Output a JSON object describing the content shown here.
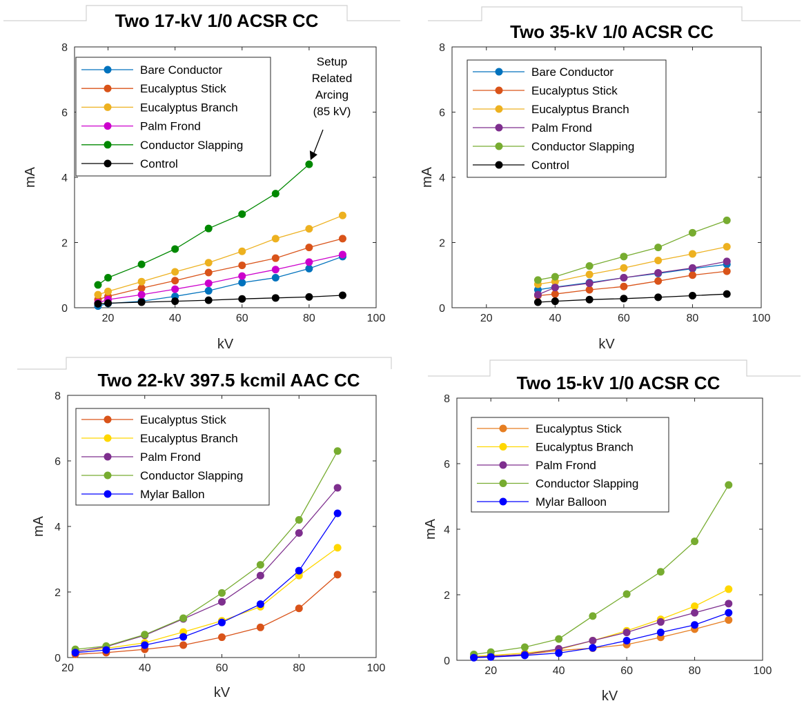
{
  "chart_data": [
    {
      "type": "line",
      "title": "Two 17-kV 1/0 ACSR CC",
      "xlabel": "kV",
      "ylabel": "mA",
      "xlim": [
        10,
        100
      ],
      "ylim": [
        0,
        8
      ],
      "xticks": [
        20,
        40,
        60,
        80,
        100
      ],
      "yticks": [
        0,
        2,
        4,
        6,
        8
      ],
      "legend_position": "top-left",
      "annotation": {
        "lines": [
          "Setup",
          "Related",
          "Arcing",
          "(85 kV)"
        ],
        "target": [
          80,
          4.4
        ]
      },
      "series": [
        {
          "name": "Bare Conductor",
          "color": "#0072BD",
          "x": [
            17,
            20,
            30,
            40,
            50,
            60,
            70,
            80,
            90
          ],
          "values": [
            0.05,
            0.13,
            0.2,
            0.35,
            0.52,
            0.77,
            0.92,
            1.2,
            1.57
          ]
        },
        {
          "name": "Eucalyptus Stick",
          "color": "#D95319",
          "x": [
            17,
            20,
            30,
            40,
            50,
            60,
            70,
            80,
            90
          ],
          "values": [
            0.25,
            0.35,
            0.6,
            0.83,
            1.08,
            1.3,
            1.52,
            1.85,
            2.12
          ]
        },
        {
          "name": "Eucalyptus Branch",
          "color": "#EDB120",
          "x": [
            17,
            20,
            30,
            40,
            50,
            60,
            70,
            80,
            90
          ],
          "values": [
            0.4,
            0.5,
            0.8,
            1.1,
            1.38,
            1.73,
            2.12,
            2.42,
            2.83
          ]
        },
        {
          "name": "Palm Frond",
          "color": "#CC00CC",
          "x": [
            17,
            20,
            30,
            40,
            50,
            60,
            70,
            80,
            90
          ],
          "values": [
            0.15,
            0.25,
            0.4,
            0.57,
            0.75,
            0.97,
            1.17,
            1.4,
            1.63
          ]
        },
        {
          "name": "Conductor Slapping",
          "color": "#008800",
          "x": [
            17,
            20,
            30,
            40,
            50,
            60,
            70,
            80
          ],
          "values": [
            0.7,
            0.92,
            1.33,
            1.8,
            2.43,
            2.87,
            3.5,
            4.4
          ]
        },
        {
          "name": "Control",
          "color": "#000000",
          "x": [
            17,
            20,
            30,
            40,
            50,
            60,
            70,
            80,
            90
          ],
          "values": [
            0.12,
            0.14,
            0.17,
            0.2,
            0.23,
            0.27,
            0.3,
            0.33,
            0.38
          ]
        }
      ]
    },
    {
      "type": "line",
      "title": "Two 35-kV 1/0 ACSR CC",
      "xlabel": "kV",
      "ylabel": "mA",
      "xlim": [
        10,
        100
      ],
      "ylim": [
        0,
        8
      ],
      "xticks": [
        20,
        40,
        60,
        80,
        100
      ],
      "yticks": [
        0,
        2,
        4,
        6,
        8
      ],
      "legend_position": "top-left",
      "series": [
        {
          "name": "Bare Conductor",
          "color": "#0072BD",
          "x": [
            35,
            40,
            50,
            60,
            70,
            80,
            90
          ],
          "values": [
            0.55,
            0.63,
            0.77,
            0.92,
            1.05,
            1.2,
            1.33
          ]
        },
        {
          "name": "Eucalyptus Stick",
          "color": "#D95319",
          "x": [
            35,
            40,
            50,
            60,
            70,
            80,
            90
          ],
          "values": [
            0.37,
            0.42,
            0.55,
            0.65,
            0.82,
            1.0,
            1.12
          ]
        },
        {
          "name": "Eucalyptus Branch",
          "color": "#EDB120",
          "x": [
            35,
            40,
            50,
            60,
            70,
            80,
            90
          ],
          "values": [
            0.72,
            0.8,
            1.02,
            1.22,
            1.45,
            1.65,
            1.87
          ]
        },
        {
          "name": "Palm Frond",
          "color": "#7E2F8E",
          "x": [
            35,
            40,
            50,
            60,
            70,
            80,
            90
          ],
          "values": [
            0.4,
            0.62,
            0.75,
            0.92,
            1.07,
            1.22,
            1.42
          ]
        },
        {
          "name": "Conductor Slapping",
          "color": "#77AC30",
          "x": [
            35,
            40,
            50,
            60,
            70,
            80,
            90
          ],
          "values": [
            0.85,
            0.95,
            1.28,
            1.57,
            1.85,
            2.3,
            2.68
          ]
        },
        {
          "name": "Control",
          "color": "#000000",
          "x": [
            35,
            40,
            50,
            60,
            70,
            80,
            90
          ],
          "values": [
            0.17,
            0.2,
            0.25,
            0.28,
            0.32,
            0.37,
            0.42
          ]
        }
      ]
    },
    {
      "type": "line",
      "title": "Two 22-kV 397.5 kcmil AAC CC",
      "xlabel": "kV",
      "ylabel": "mA",
      "xlim": [
        20,
        100
      ],
      "ylim": [
        0,
        8
      ],
      "xticks": [
        20,
        40,
        60,
        80,
        100
      ],
      "yticks": [
        0,
        2,
        4,
        6,
        8
      ],
      "legend_position": "top-left",
      "series": [
        {
          "name": "Eucalyptus Stick",
          "color": "#D95319",
          "x": [
            22,
            30,
            40,
            50,
            60,
            70,
            80,
            90
          ],
          "values": [
            0.1,
            0.15,
            0.25,
            0.38,
            0.62,
            0.92,
            1.5,
            2.53
          ]
        },
        {
          "name": "Eucalyptus Branch",
          "color": "#FFD700",
          "x": [
            22,
            30,
            40,
            50,
            60,
            70,
            80,
            90
          ],
          "values": [
            0.2,
            0.28,
            0.45,
            0.78,
            1.12,
            1.55,
            2.5,
            3.35
          ]
        },
        {
          "name": "Palm Frond",
          "color": "#7E2F8E",
          "x": [
            22,
            30,
            40,
            50,
            60,
            70,
            80,
            90
          ],
          "values": [
            0.18,
            0.33,
            0.68,
            1.18,
            1.7,
            2.5,
            3.8,
            5.18
          ]
        },
        {
          "name": "Conductor Slapping",
          "color": "#77AC30",
          "x": [
            22,
            30,
            40,
            50,
            60,
            70,
            80,
            90
          ],
          "values": [
            0.25,
            0.35,
            0.7,
            1.2,
            1.97,
            2.83,
            4.2,
            6.3
          ]
        },
        {
          "name": "Mylar Ballon",
          "color": "#0000FF",
          "x": [
            22,
            30,
            40,
            50,
            60,
            70,
            80,
            90
          ],
          "values": [
            0.15,
            0.23,
            0.38,
            0.63,
            1.07,
            1.63,
            2.65,
            4.4
          ]
        }
      ]
    },
    {
      "type": "line",
      "title": "Two 15-kV 1/0 ACSR CC",
      "xlabel": "kV",
      "ylabel": "mA",
      "xlim": [
        10,
        100
      ],
      "ylim": [
        0,
        8
      ],
      "xticks": [
        20,
        40,
        60,
        80,
        100
      ],
      "yticks": [
        0,
        2,
        4,
        6,
        8
      ],
      "legend_position": "top-left",
      "series": [
        {
          "name": "Eucalyptus Stick",
          "color": "#E67E22",
          "x": [
            15,
            20,
            30,
            40,
            50,
            60,
            70,
            80,
            90
          ],
          "values": [
            0.1,
            0.12,
            0.18,
            0.3,
            0.37,
            0.48,
            0.7,
            0.95,
            1.23
          ]
        },
        {
          "name": "Eucalyptus Branch",
          "color": "#FFD700",
          "x": [
            15,
            20,
            30,
            40,
            50,
            60,
            70,
            80,
            90
          ],
          "values": [
            0.12,
            0.15,
            0.22,
            0.33,
            0.6,
            0.9,
            1.25,
            1.65,
            2.17
          ]
        },
        {
          "name": "Palm Frond",
          "color": "#7E2F8E",
          "x": [
            15,
            20,
            30,
            40,
            50,
            60,
            70,
            80,
            90
          ],
          "values": [
            0.1,
            0.12,
            0.18,
            0.35,
            0.6,
            0.85,
            1.17,
            1.45,
            1.73
          ]
        },
        {
          "name": "Conductor Slapping",
          "color": "#77AC30",
          "x": [
            15,
            20,
            30,
            40,
            50,
            60,
            70,
            80,
            90
          ],
          "values": [
            0.18,
            0.25,
            0.4,
            0.65,
            1.35,
            2.02,
            2.7,
            3.63,
            5.35
          ]
        },
        {
          "name": "Mylar Balloon",
          "color": "#0000FF",
          "x": [
            15,
            20,
            30,
            40,
            50,
            60,
            70,
            80,
            90
          ],
          "values": [
            0.08,
            0.1,
            0.15,
            0.22,
            0.38,
            0.6,
            0.85,
            1.08,
            1.45
          ]
        }
      ]
    }
  ]
}
